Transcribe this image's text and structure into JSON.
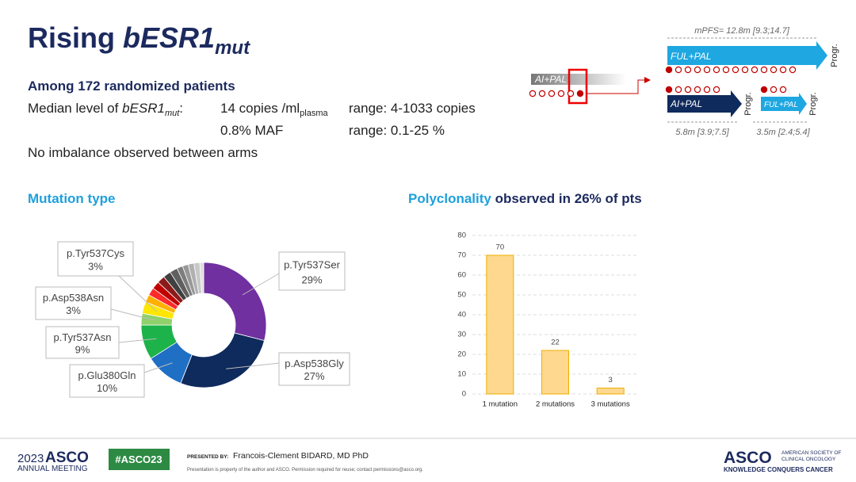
{
  "header": {
    "title_main": "Rising ",
    "title_italic": "bESR1",
    "title_sub": "mut"
  },
  "summary": {
    "heading": "Among 172 randomized patients",
    "median_label": "Median level of ",
    "median_italic": "bESR1",
    "median_sub": "mut",
    "median_colon": ":",
    "copies": "14 copies /ml",
    "copies_sub": "plasma",
    "copies_range": "range: 4-1033 copies",
    "maf": "0.8% MAF",
    "maf_range": "range: 0.1-25 %",
    "balance": "No imbalance observed between arms"
  },
  "sections": {
    "mutation_type": "Mutation type",
    "polyclonality": "Polyclonality",
    "polyclonality_rest": " observed in 26% of pts"
  },
  "diagram": {
    "mpfs": "mPFS= 12.8m [9.3;14.7]",
    "ful_pal_top": "FUL+PAL",
    "progr_top": "Progr.",
    "ai_pal_left": "AI+PAL",
    "ai_pal": "AI+PAL",
    "progr_mid": "Progr.",
    "ful_pal_small": "FUL+PAL",
    "progr_right": "Progr.",
    "pfs1": "5.8m [3.9;7.5]",
    "pfs2": "3.5m [2.4;5.4]"
  },
  "chart_data": [
    {
      "type": "pie",
      "donut": true,
      "categories": [
        "p.Tyr537Ser",
        "p.Asp538Gly",
        "p.Glu380Gln",
        "p.Tyr537Asn",
        "p.Asp538Asn",
        "p.Tyr537Cys",
        null,
        null,
        null,
        null,
        null,
        null,
        null,
        null,
        null,
        null,
        null
      ],
      "values": [
        29,
        27,
        10,
        9,
        3,
        3,
        2,
        2,
        2,
        2,
        2,
        2,
        1.5,
        1.5,
        1.5,
        1.5,
        1
      ],
      "value_labels": [
        "29%",
        "27%",
        "10%",
        "9%",
        "3%",
        "3%",
        null,
        null,
        null,
        null,
        null,
        null,
        null,
        null,
        null,
        null,
        null
      ],
      "colors": [
        "#7030a0",
        "#0f2a5c",
        "#1f6fc5",
        "#1db34a",
        "#8fd16a",
        "#ffe600",
        "#ffb000",
        "#ff2a2a",
        "#c00000",
        "#8b1a1a",
        "#404040",
        "#606060",
        "#7d7d7d",
        "#989898",
        "#b0b0b0",
        "#c8c8c8",
        "#dedede"
      ]
    },
    {
      "type": "bar",
      "categories": [
        "1 mutation",
        "2 mutations",
        "3 mutations"
      ],
      "values": [
        70,
        22,
        3
      ],
      "color": "#fdd88e",
      "edge_color": "#f0b000",
      "ylim": [
        0,
        80
      ],
      "yticks": [
        0,
        10,
        20,
        30,
        40,
        50,
        60,
        70,
        80
      ],
      "grid": true
    }
  ],
  "footer": {
    "year": "2023",
    "asco": "ASCO",
    "meeting": "ANNUAL MEETING",
    "hashtag": "#ASCO23",
    "presented_by": "PRESENTED BY:",
    "presenter": "Francois-Clement BIDARD, MD PhD",
    "notice": "Presentation is property of the author and ASCO. Permission required for reuse; contact permissions@asco.org.",
    "logo": "ASCO",
    "society1": "AMERICAN SOCIETY OF",
    "society2": "CLINICAL ONCOLOGY",
    "tagline": "KNOWLEDGE CONQUERS CANCER"
  }
}
